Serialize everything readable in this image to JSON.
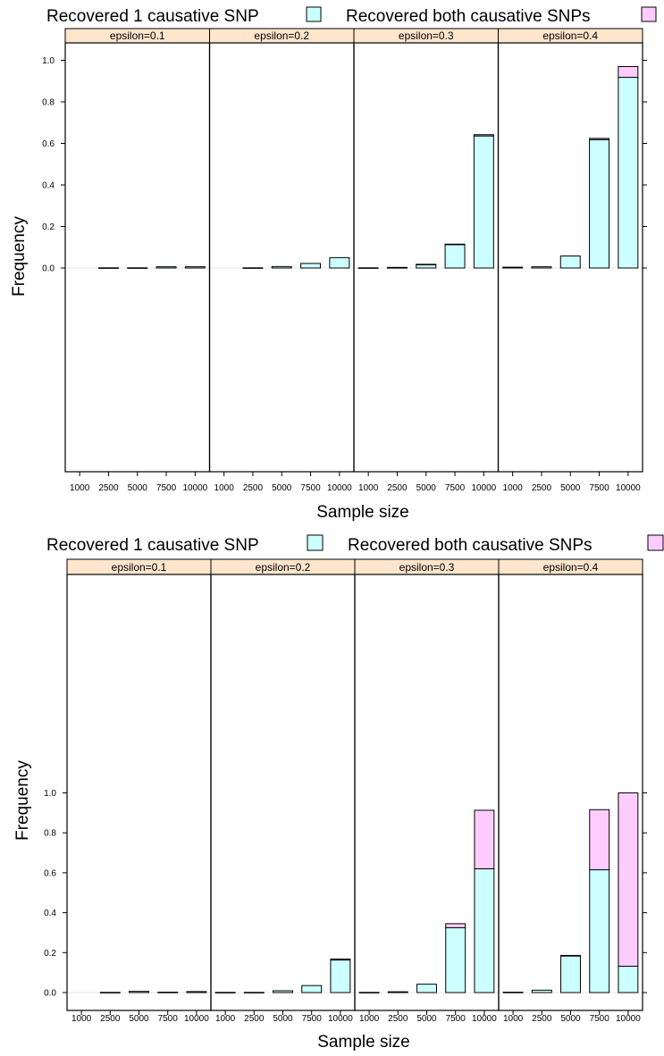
{
  "chart_data": [
    {
      "type": "bar",
      "stacked": true,
      "legend": {
        "placement": "top",
        "entries": [
          {
            "label": "Recovered 1 causative SNP",
            "color": "#ccffff"
          },
          {
            "label": "Recovered both causative SNPs",
            "color": "#ffccff"
          }
        ]
      },
      "panel_label_prefix": "epsilon=",
      "panels": [
        "0.1",
        "0.2",
        "0.3",
        "0.4"
      ],
      "categories": [
        "1000",
        "2500",
        "5000",
        "7500",
        "10000"
      ],
      "series": [
        {
          "name": "Recovered 1 causative SNP",
          "values": [
            [
              0,
              0.001,
              0.001,
              0.006,
              0.006
            ],
            [
              0,
              0.001,
              0.007,
              0.022,
              0.05
            ],
            [
              0.001,
              0.002,
              0.017,
              0.113,
              0.636
            ],
            [
              0.004,
              0.006,
              0.058,
              0.618,
              0.918
            ]
          ]
        },
        {
          "name": "Recovered both causative SNPs",
          "values": [
            [
              0,
              0,
              0,
              0,
              0
            ],
            [
              0,
              0,
              0,
              0,
              0
            ],
            [
              0,
              0.001,
              0.001,
              0.002,
              0.006
            ],
            [
              0,
              0,
              0,
              0.006,
              0.052
            ]
          ]
        }
      ],
      "xlabel": "Sample size",
      "ylabel": "Frequency",
      "ylim": [
        -0.07,
        1.05
      ],
      "yticks": [
        0.0,
        0.2,
        0.4,
        0.6,
        0.8,
        1.0
      ],
      "ytick_labels": [
        "0.0",
        "0.2",
        "0.4",
        "0.6",
        "0.8",
        "1.0"
      ],
      "grid": false
    },
    {
      "type": "bar",
      "stacked": true,
      "legend": {
        "placement": "top",
        "entries": [
          {
            "label": "Recovered 1 causative SNP",
            "color": "#ccffff"
          },
          {
            "label": "Recovered both causative SNPs",
            "color": "#ffccff"
          }
        ]
      },
      "panel_label_prefix": "epsilon=",
      "panels": [
        "0.1",
        "0.2",
        "0.3",
        "0.4"
      ],
      "categories": [
        "1000",
        "2500",
        "5000",
        "7500",
        "10000"
      ],
      "series": [
        {
          "name": "Recovered 1 causative SNP",
          "values": [
            [
              0,
              0.001,
              0.006,
              0.002,
              0.005
            ],
            [
              0.001,
              0.001,
              0.009,
              0.035,
              0.163
            ],
            [
              0.001,
              0.004,
              0.042,
              0.325,
              0.62
            ],
            [
              0.002,
              0.012,
              0.183,
              0.615,
              0.132
            ]
          ]
        },
        {
          "name": "Recovered both causative SNPs",
          "values": [
            [
              0,
              0,
              0,
              0,
              0
            ],
            [
              0,
              0,
              0,
              0,
              0.005
            ],
            [
              0,
              0,
              0,
              0.02,
              0.293
            ],
            [
              0,
              0,
              0.003,
              0.301,
              0.868
            ]
          ]
        }
      ],
      "xlabel": "Sample size",
      "ylabel": "Frequency",
      "ylim": [
        -0.07,
        1.07
      ],
      "yticks": [
        0.0,
        0.2,
        0.4,
        0.6,
        0.8,
        1.0
      ],
      "ytick_labels": [
        "0.0",
        "0.2",
        "0.4",
        "0.6",
        "0.8",
        "1.0"
      ],
      "grid": false
    }
  ]
}
